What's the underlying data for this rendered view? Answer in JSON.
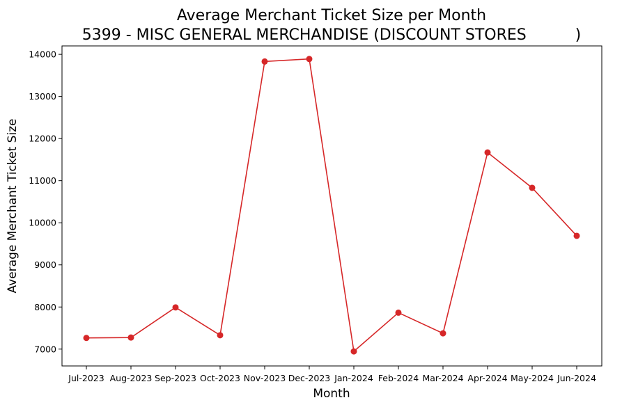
{
  "chart_data": {
    "type": "line",
    "title_line1": "Average Merchant Ticket Size per Month",
    "title_line2": "5399 - MISC GENERAL MERCHANDISE (DISCOUNT STORES          )",
    "xlabel": "Month",
    "ylabel": "Average Merchant Ticket Size",
    "categories": [
      "Jul-2023",
      "Aug-2023",
      "Sep-2023",
      "Oct-2023",
      "Nov-2023",
      "Dec-2023",
      "Jan-2024",
      "Feb-2024",
      "Mar-2024",
      "Apr-2024",
      "May-2024",
      "Jun-2024"
    ],
    "values": [
      7265,
      7275,
      7990,
      7330,
      13830,
      13890,
      6945,
      7865,
      7375,
      11670,
      10830,
      9690
    ],
    "ylim": [
      6600,
      14200
    ],
    "yticks": [
      7000,
      8000,
      9000,
      10000,
      11000,
      12000,
      13000,
      14000
    ],
    "grid": false,
    "line_color": "#d62728",
    "marker": "circle"
  }
}
